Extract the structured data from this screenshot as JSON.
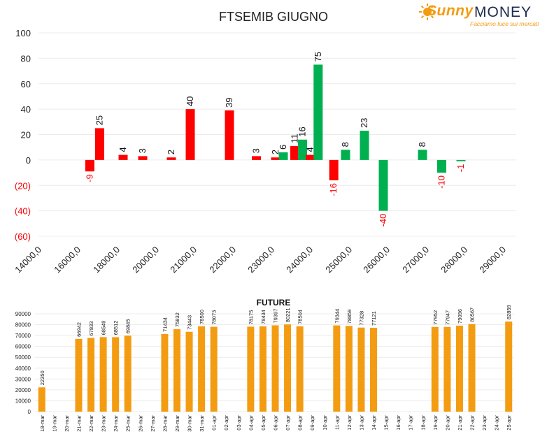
{
  "logo": {
    "brand_first": "Sunny",
    "brand_second": "MONEY",
    "tagline": "Facciamo luce sui mercati",
    "color_orange": "#f39c12",
    "color_navy": "#1d2c4e"
  },
  "chart_data": [
    {
      "type": "bar",
      "title": "FTSEMIB GIUGNO",
      "ylim": [
        -60,
        100
      ],
      "y_ticks": [
        "100",
        "80",
        "60",
        "40",
        "20",
        "0",
        "(20)",
        "(40)",
        "(60)"
      ],
      "y_tick_values": [
        100,
        80,
        60,
        40,
        20,
        0,
        -20,
        -40,
        -60
      ],
      "x_ticks": [
        "14000,0",
        "16000,0",
        "18000,0",
        "20000,0",
        "21000,0",
        "22000,0",
        "23000,0",
        "24000,0",
        "25000,0",
        "26000,0",
        "27000,0",
        "28000,0",
        "29000,0"
      ],
      "grid": true,
      "colors": {
        "red": "#ff0000",
        "green": "#00b050",
        "negative_label": "#ff0000"
      },
      "series": [
        {
          "x": 16800,
          "value": -9,
          "color": "red",
          "label": "-9"
        },
        {
          "x": 17300,
          "value": 25,
          "color": "red",
          "label": "25"
        },
        {
          "x": 18500,
          "value": 4,
          "color": "red",
          "label": "4"
        },
        {
          "x": 19500,
          "value": 3,
          "color": "red",
          "label": "3"
        },
        {
          "x": 20500,
          "value": 2,
          "color": "red",
          "label": "2"
        },
        {
          "x": 21000,
          "value": 40,
          "color": "red",
          "label": "40"
        },
        {
          "x": 22000,
          "value": 39,
          "color": "red",
          "label": "39"
        },
        {
          "x": 22700,
          "value": 3,
          "color": "red",
          "label": "3"
        },
        {
          "x": 23200,
          "value": 2,
          "color": "red",
          "label": "2"
        },
        {
          "x": 23400,
          "value": 6,
          "color": "green",
          "label": "6"
        },
        {
          "x": 23700,
          "value": 11,
          "color": "red",
          "label": "11"
        },
        {
          "x": 23900,
          "value": 16,
          "color": "green",
          "label": "16"
        },
        {
          "x": 24100,
          "value": 4,
          "color": "red",
          "label": "4"
        },
        {
          "x": 24300,
          "value": 75,
          "color": "green",
          "label": "75"
        },
        {
          "x": 24700,
          "value": -16,
          "color": "red",
          "label": "-16"
        },
        {
          "x": 25000,
          "value": 8,
          "color": "green",
          "label": "8"
        },
        {
          "x": 25500,
          "value": 23,
          "color": "green",
          "label": "23"
        },
        {
          "x": 26000,
          "value": -40,
          "color": "green",
          "label": "-40"
        },
        {
          "x": 27000,
          "value": 8,
          "color": "green",
          "label": "8"
        },
        {
          "x": 27500,
          "value": -10,
          "color": "green",
          "label": "-10"
        },
        {
          "x": 28000,
          "value": -1,
          "color": "green",
          "label": "-1"
        }
      ]
    },
    {
      "type": "bar",
      "title": "FUTURE",
      "ylim": [
        0,
        90000
      ],
      "y_ticks": [
        "90000",
        "80000",
        "70000",
        "60000",
        "50000",
        "40000",
        "30000",
        "20000",
        "10000",
        "0"
      ],
      "y_tick_values": [
        90000,
        80000,
        70000,
        60000,
        50000,
        40000,
        30000,
        20000,
        10000,
        0
      ],
      "bar_color": "#f39c12",
      "categories": [
        "18-mar",
        "19-mar",
        "20-mar",
        "21-mar",
        "22-mar",
        "23-mar",
        "24-mar",
        "25-mar",
        "26-mar",
        "27-mar",
        "28-mar",
        "29-mar",
        "30-mar",
        "31-mar",
        "01-apr",
        "02-apr",
        "03-apr",
        "04-apr",
        "05-apr",
        "06-apr",
        "07-apr",
        "08-apr",
        "09-apr",
        "10-apr",
        "11-apr",
        "12-apr",
        "13-apr",
        "14-apr",
        "15-apr",
        "16-apr",
        "17-apr",
        "18-apr",
        "19-apr",
        "20-apr",
        "21-apr",
        "22-apr",
        "23-apr",
        "24-apr",
        "25-apr"
      ],
      "values": [
        22350,
        null,
        null,
        66942,
        67833,
        68549,
        68512,
        69845,
        null,
        null,
        71434,
        75832,
        73443,
        78500,
        78073,
        null,
        null,
        78175,
        78434,
        79397,
        80221,
        78504,
        null,
        null,
        79344,
        78859,
        77328,
        77121,
        null,
        null,
        null,
        null,
        77952,
        77947,
        79096,
        80567,
        null,
        null,
        82859
      ],
      "value_labels": [
        "22350",
        "",
        "",
        "66942",
        "67833",
        "68549",
        "68512",
        "69845",
        "",
        "",
        "71434",
        "75832",
        "73443",
        "78500",
        "78073",
        "",
        "",
        "78175",
        "78434",
        "79397",
        "80221",
        "78504",
        "",
        "",
        "79344",
        "78859",
        "77328",
        "77121",
        "",
        "",
        "",
        "",
        "77952",
        "77947",
        "79096",
        "80567",
        "",
        "",
        "82859"
      ],
      "grid": true
    }
  ]
}
